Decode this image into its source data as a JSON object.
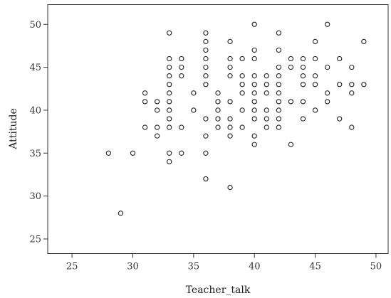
{
  "chart_data": {
    "type": "scatter",
    "title": "",
    "xlabel": "Teacher_talk",
    "ylabel": "Attitude",
    "xlim": [
      23,
      51
    ],
    "ylim": [
      23.3,
      52.3
    ],
    "xticks": [
      25,
      30,
      35,
      40,
      45,
      50
    ],
    "yticks": [
      25,
      30,
      35,
      40,
      45,
      50
    ],
    "grid": false,
    "marker": "open-circle",
    "points": [
      [
        28,
        35
      ],
      [
        29,
        28
      ],
      [
        30,
        35
      ],
      [
        31,
        38
      ],
      [
        31,
        41
      ],
      [
        31,
        42
      ],
      [
        32,
        37
      ],
      [
        32,
        38
      ],
      [
        32,
        40
      ],
      [
        32,
        41
      ],
      [
        33,
        34
      ],
      [
        33,
        35
      ],
      [
        33,
        38
      ],
      [
        33,
        39
      ],
      [
        33,
        40
      ],
      [
        33,
        41
      ],
      [
        33,
        42
      ],
      [
        33,
        43
      ],
      [
        33,
        44
      ],
      [
        33,
        45
      ],
      [
        33,
        46
      ],
      [
        33,
        49
      ],
      [
        34,
        35
      ],
      [
        34,
        38
      ],
      [
        34,
        44
      ],
      [
        34,
        45
      ],
      [
        34,
        46
      ],
      [
        35,
        40
      ],
      [
        35,
        42
      ],
      [
        36,
        32
      ],
      [
        36,
        35
      ],
      [
        36,
        37
      ],
      [
        36,
        39
      ],
      [
        36,
        43
      ],
      [
        36,
        44
      ],
      [
        36,
        45
      ],
      [
        36,
        46
      ],
      [
        36,
        47
      ],
      [
        36,
        48
      ],
      [
        36,
        49
      ],
      [
        37,
        38
      ],
      [
        37,
        39
      ],
      [
        37,
        40
      ],
      [
        37,
        41
      ],
      [
        37,
        42
      ],
      [
        38,
        31
      ],
      [
        38,
        37
      ],
      [
        38,
        38
      ],
      [
        38,
        39
      ],
      [
        38,
        41
      ],
      [
        38,
        44
      ],
      [
        38,
        45
      ],
      [
        38,
        46
      ],
      [
        38,
        48
      ],
      [
        39,
        38
      ],
      [
        39,
        40
      ],
      [
        39,
        42
      ],
      [
        39,
        43
      ],
      [
        39,
        44
      ],
      [
        39,
        46
      ],
      [
        40,
        36
      ],
      [
        40,
        37
      ],
      [
        40,
        39
      ],
      [
        40,
        40
      ],
      [
        40,
        41
      ],
      [
        40,
        42
      ],
      [
        40,
        43
      ],
      [
        40,
        44
      ],
      [
        40,
        46
      ],
      [
        40,
        47
      ],
      [
        40,
        50
      ],
      [
        41,
        38
      ],
      [
        41,
        39
      ],
      [
        41,
        40
      ],
      [
        41,
        42
      ],
      [
        41,
        43
      ],
      [
        41,
        44
      ],
      [
        42,
        38
      ],
      [
        42,
        39
      ],
      [
        42,
        40
      ],
      [
        42,
        41
      ],
      [
        42,
        42
      ],
      [
        42,
        43
      ],
      [
        42,
        44
      ],
      [
        42,
        45
      ],
      [
        42,
        47
      ],
      [
        42,
        49
      ],
      [
        43,
        36
      ],
      [
        43,
        41
      ],
      [
        43,
        45
      ],
      [
        43,
        46
      ],
      [
        44,
        39
      ],
      [
        44,
        41
      ],
      [
        44,
        43
      ],
      [
        44,
        44
      ],
      [
        44,
        45
      ],
      [
        44,
        46
      ],
      [
        45,
        40
      ],
      [
        45,
        43
      ],
      [
        45,
        44
      ],
      [
        45,
        46
      ],
      [
        45,
        48
      ],
      [
        46,
        41
      ],
      [
        46,
        42
      ],
      [
        46,
        45
      ],
      [
        46,
        50
      ],
      [
        47,
        39
      ],
      [
        47,
        43
      ],
      [
        47,
        46
      ],
      [
        48,
        38
      ],
      [
        48,
        42
      ],
      [
        48,
        43
      ],
      [
        48,
        45
      ],
      [
        49,
        43
      ],
      [
        49,
        48
      ]
    ]
  }
}
